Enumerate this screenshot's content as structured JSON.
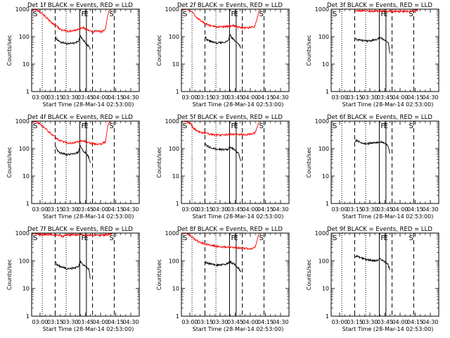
{
  "chart_data": {
    "type": "line",
    "grid": false,
    "x_ticks": [
      "03:00",
      "03:15",
      "03:30",
      "03:45",
      "04:00",
      "04:15",
      "04:30"
    ],
    "y_scale": "log",
    "y_ticks": [
      "1",
      "10",
      "100",
      "1000"
    ],
    "ylim": [
      1,
      1000
    ],
    "ylabel": "Counts/sec",
    "xlabel": "Start Time (28-Mar-14 02:53:00)",
    "colors": {
      "events": "#000000",
      "lld": "#ff0000"
    },
    "x_range_minutes": [
      -5,
      35
    ],
    "panels": [
      {
        "title": "Det 1f BLACK = Events, RED = LLD",
        "dotted": [
          0.96,
          11.5
        ],
        "dashed": [
          6.66,
          23.13,
          32.7
        ],
        "solid": [
          17.5,
          20.43
        ],
        "flags": [
          "S",
          "F",
          "E",
          "S"
        ],
        "series": [
          {
            "name": "BLACK = Events",
            "x": [
              6.8,
              7.3,
              9,
              12,
              15,
              17,
              17.6,
              18.4,
              19.3,
              20.1,
              20.6,
              21.5,
              22.1
            ],
            "y": [
              100,
              80,
              62,
              55,
              58,
              68,
              110,
              85,
              70,
              58,
              52,
              45,
              33
            ]
          },
          {
            "name": "RED = LLD",
            "x": [
              -5,
              -3.4,
              -1.7,
              0.6,
              3.3,
              5.2,
              7.3,
              9,
              12,
              15,
              17.5,
              19,
              20.5,
              21.5,
              22.5,
              23.2,
              24.5,
              27,
              28.8,
              29.9,
              30.9
            ],
            "y": [
              1000,
              1000,
              950,
              720,
              450,
              310,
              240,
              180,
              155,
              165,
              200,
              210,
              185,
              165,
              155,
              140,
              160,
              150,
              180,
              650,
              1000
            ]
          }
        ]
      },
      {
        "title": "Det 2f BLACK = Events, RED = LLD",
        "dotted": [
          0.96,
          11.5
        ],
        "dashed": [
          6.66,
          23.13,
          32.7
        ],
        "solid": [
          17.5,
          20.43
        ],
        "flags": [
          "S",
          "F",
          "E",
          "S"
        ],
        "series": [
          {
            "name": "BLACK = Events",
            "x": [
              6.8,
              7.3,
              9,
              12,
              15,
              17,
              17.6,
              18.4,
              19.3,
              20.1,
              20.6,
              21.5,
              22.5
            ],
            "y": [
              110,
              80,
              68,
              58,
              62,
              70,
              120,
              95,
              80,
              66,
              60,
              52,
              40
            ]
          },
          {
            "name": "RED = LLD",
            "x": [
              -5,
              -3,
              -1.3,
              0.5,
              2.5,
              4.8,
              6.8,
              9,
              12,
              15,
              17.5,
              19,
              20.5,
              22,
              23,
              24.5,
              26.5,
              28.5,
              29.7,
              30.7
            ],
            "y": [
              1000,
              1000,
              990,
              880,
              550,
              380,
              300,
              250,
              230,
              225,
              240,
              250,
              230,
              215,
              210,
              205,
              210,
              230,
              450,
              1000
            ]
          }
        ]
      },
      {
        "title": "Det 3f BLACK = Events, RED = LLD",
        "dotted": [
          0.96,
          11.5
        ],
        "dashed": [
          6.66,
          23.13,
          32.7
        ],
        "solid": [
          17.5,
          20.43
        ],
        "flags": [
          "S",
          "F",
          "E",
          "S"
        ],
        "series": [
          {
            "name": "BLACK = Events",
            "x": [
              6.8,
              7.3,
              9,
              12,
              15,
              17,
              17.6,
              18.4,
              19.3,
              20.1,
              20.6,
              21.5,
              22.2
            ],
            "y": [
              85,
              80,
              75,
              68,
              75,
              82,
              95,
              85,
              80,
              76,
              70,
              62,
              24
            ]
          },
          {
            "name": "RED = LLD",
            "x": [
              6.8,
              9,
              12,
              15,
              18,
              21,
              24,
              27,
              29.5,
              31,
              32.5,
              34.5
            ],
            "y": [
              900,
              880,
              860,
              850,
              860,
              845,
              830,
              820,
              830,
              850,
              880,
              900
            ]
          }
        ]
      },
      {
        "title": "Det 4f BLACK = Events, RED = LLD",
        "dotted": [
          0.96,
          11.5
        ],
        "dashed": [
          6.66,
          23.13,
          32.7
        ],
        "solid": [
          17.5,
          20.43
        ],
        "flags": [
          "S",
          "F",
          "E",
          "S"
        ],
        "series": [
          {
            "name": "BLACK = Events",
            "x": [
              6.8,
              7.3,
              9,
              12,
              15,
              17,
              17.6,
              18.4,
              19.3,
              20.1,
              20.6,
              21.5,
              22.2
            ],
            "y": [
              120,
              90,
              70,
              60,
              65,
              75,
              130,
              100,
              80,
              70,
              62,
              48,
              30
            ]
          },
          {
            "name": "RED = LLD",
            "x": [
              -5,
              -3.4,
              -1.5,
              0.8,
              3.5,
              5.8,
              7.3,
              9,
              12,
              15,
              17.5,
              19,
              20.5,
              22,
              23.5,
              25,
              27,
              28.8,
              29.9,
              30.8
            ],
            "y": [
              1000,
              1000,
              930,
              680,
              430,
              300,
              230,
              190,
              160,
              160,
              185,
              200,
              175,
              160,
              150,
              145,
              150,
              175,
              700,
              1000
            ]
          }
        ]
      },
      {
        "title": "Det 5f BLACK = Events, RED = LLD",
        "dotted": [
          0.96,
          11.5
        ],
        "dashed": [
          6.66,
          23.13,
          32.7
        ],
        "solid": [
          17.5,
          20.43
        ],
        "flags": [
          "S",
          "F",
          "E",
          "S"
        ],
        "series": [
          {
            "name": "BLACK = Events",
            "x": [
              6.8,
              7.3,
              9,
              12,
              15,
              17,
              17.6,
              18.4,
              19.3,
              20.1,
              20.6,
              21.5,
              22.5
            ],
            "y": [
              150,
              130,
              110,
              95,
              92,
              95,
              115,
              105,
              95,
              85,
              78,
              65,
              35
            ]
          },
          {
            "name": "RED = LLD",
            "x": [
              -5,
              -3,
              -1.4,
              0.2,
              1.6,
              3.5,
              5.5,
              7.5,
              10,
              13,
              16,
              18,
              20,
              22,
              24.5,
              27,
              28.8,
              29.8,
              30.6
            ],
            "y": [
              1000,
              1000,
              980,
              820,
              560,
              430,
              380,
              350,
              320,
              310,
              320,
              330,
              340,
              330,
              320,
              330,
              380,
              650,
              1000
            ]
          }
        ]
      },
      {
        "title": "Det 6f BLACK = Events, RED = LLD",
        "dotted": [
          0.96,
          11.5
        ],
        "dashed": [
          6.66,
          23.13,
          32.7
        ],
        "solid": [
          17.5,
          20.43
        ],
        "flags": [
          "S",
          "F",
          "E",
          "S"
        ],
        "series": [
          {
            "name": "BLACK = Events",
            "x": [
              6.8,
              7.3,
              9,
              12,
              15,
              17,
              17.6,
              18.4,
              19.3,
              20.1,
              20.6,
              21.5,
              22.2
            ],
            "y": [
              180,
              200,
              170,
              150,
              160,
              170,
              175,
              170,
              160,
              150,
              140,
              115,
              65
            ]
          }
        ]
      },
      {
        "title": "Det 7f BLACK = Events, RED = LLD",
        "dotted": [
          0.96,
          11.5
        ],
        "dashed": [
          6.66,
          23.13,
          32.7
        ],
        "solid": [
          17.5,
          20.43
        ],
        "flags": [
          "S",
          "F",
          "E",
          "S"
        ],
        "series": [
          {
            "name": "BLACK = Events",
            "x": [
              6.8,
              7.3,
              9,
              12,
              15,
              17,
              17.6,
              18.4,
              19.3,
              20.1,
              20.6,
              21.5,
              22.2
            ],
            "y": [
              95,
              75,
              60,
              52,
              55,
              62,
              100,
              80,
              68,
              60,
              55,
              48,
              22
            ]
          },
          {
            "name": "RED = LLD",
            "x": [
              -5,
              -3,
              -1.5,
              1,
              4,
              7,
              9,
              10,
              11,
              13,
              16,
              18,
              19,
              21,
              24,
              27,
              29,
              30.5,
              32
            ],
            "y": [
              1000,
              980,
              940,
              900,
              880,
              860,
              830,
              720,
              850,
              880,
              870,
              880,
              820,
              860,
              850,
              830,
              860,
              900,
              950
            ]
          }
        ]
      },
      {
        "title": "Det 8f BLACK = Events, RED = LLD",
        "dotted": [
          0.96,
          11.5
        ],
        "dashed": [
          6.66,
          23.13,
          32.7
        ],
        "solid": [
          17.5,
          20.43
        ],
        "flags": [
          "S",
          "F",
          "E",
          "S"
        ],
        "series": [
          {
            "name": "BLACK = Events",
            "x": [
              6.8,
              7.3,
              9,
              12,
              15,
              17,
              17.6,
              18.4,
              19.3,
              20.1,
              20.6,
              21.5,
              22.5
            ],
            "y": [
              90,
              85,
              78,
              70,
              72,
              80,
              95,
              85,
              78,
              70,
              62,
              55,
              40
            ]
          },
          {
            "name": "RED = LLD",
            "x": [
              -5,
              -3,
              -1.4,
              0.2,
              2,
              4,
              6.3,
              8.5,
              11,
              14,
              17,
              19.5,
              22,
              24.5,
              27,
              28.8,
              29.8,
              30.6
            ],
            "y": [
              1000,
              1000,
              980,
              820,
              600,
              470,
              420,
              380,
              340,
              320,
              310,
              300,
              290,
              280,
              275,
              300,
              600,
              1000
            ]
          }
        ]
      },
      {
        "title": "Det 9f BLACK = Events, RED = LLD",
        "dotted": [
          0.96,
          11.5
        ],
        "dashed": [
          6.66,
          23.13,
          32.7
        ],
        "solid": [
          17.5,
          20.43
        ],
        "flags": [
          "S",
          "F",
          "E",
          "S"
        ],
        "series": [
          {
            "name": "BLACK = Events",
            "x": [
              6.8,
              7.3,
              9,
              12,
              15,
              17,
              17.6,
              18.4,
              19.3,
              20.1,
              20.6,
              21.5,
              22.2
            ],
            "y": [
              140,
              150,
              130,
              110,
              100,
              105,
              120,
              110,
              100,
              90,
              80,
              70,
              45
            ]
          }
        ]
      }
    ]
  }
}
